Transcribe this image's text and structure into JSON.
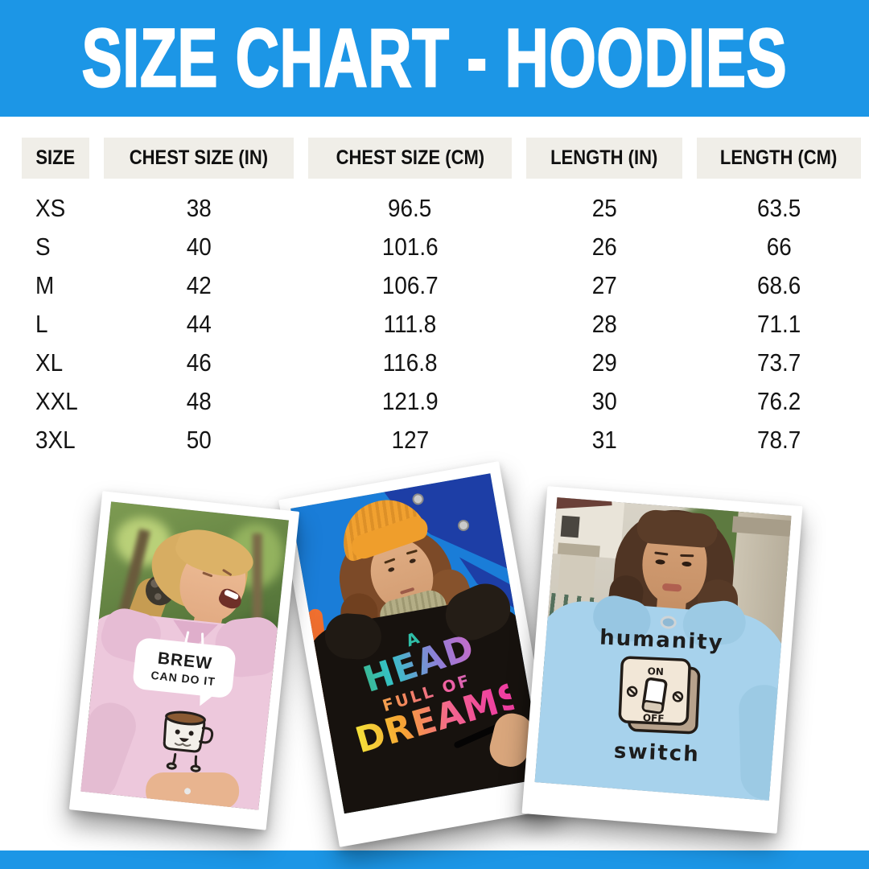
{
  "header": {
    "title": "SIZE CHART - HOODIES"
  },
  "chart_data": {
    "type": "table",
    "title": "SIZE CHART - HOODIES",
    "columns": [
      "SIZE",
      "CHEST SIZE (IN)",
      "CHEST SIZE (CM)",
      "LENGTH (IN)",
      "LENGTH (CM)"
    ],
    "rows": [
      [
        "XS",
        "38",
        "96.5",
        "25",
        "63.5"
      ],
      [
        "S",
        "40",
        "101.6",
        "26",
        "66"
      ],
      [
        "M",
        "42",
        "106.7",
        "27",
        "68.6"
      ],
      [
        "L",
        "44",
        "111.8",
        "28",
        "71.1"
      ],
      [
        "XL",
        "46",
        "116.8",
        "29",
        "73.7"
      ],
      [
        "XXL",
        "48",
        "121.9",
        "30",
        "76.2"
      ],
      [
        "3XL",
        "50",
        "127",
        "31",
        "78.7"
      ]
    ]
  },
  "photos": [
    {
      "id": "pink-hoodie-photo",
      "hoodie_color_name": "pink",
      "design": {
        "line1": "BREW",
        "line2": "CAN DO IT"
      }
    },
    {
      "id": "black-hoodie-photo",
      "hoodie_color_name": "black",
      "design": {
        "prefix": "A",
        "head": "HEAD",
        "full_of": "FULL OF",
        "dreams": "DREAMS"
      }
    },
    {
      "id": "blue-hoodie-photo",
      "hoodie_color_name": "light blue",
      "design": {
        "top": "humanity",
        "on": "ON",
        "off": "OFF",
        "bottom": "switch"
      }
    }
  ],
  "colors": {
    "accent_blue": "#1C96E6",
    "header_box_bg": "#F0EEE8",
    "text_ink": "#141414",
    "pink_hoodie": "#EDC8DC",
    "black_hoodie": "#17120E",
    "blue_hoodie": "#A7D2EC",
    "beanie_orange": "#F1A130"
  }
}
